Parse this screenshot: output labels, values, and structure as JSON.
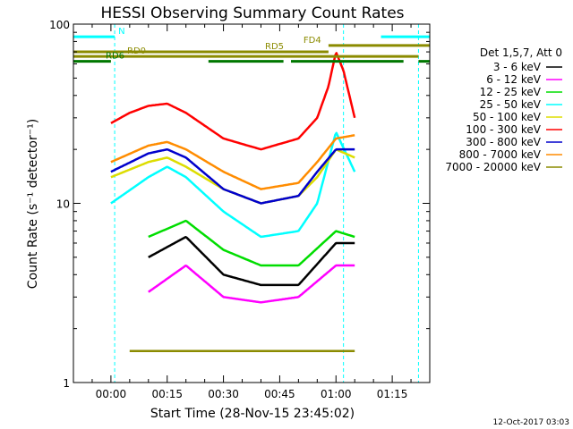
{
  "chart_data": {
    "type": "line",
    "title": "HESSI Observing Summary Count Rates",
    "xlabel": "Start Time (28-Nov-15 23:45:02)",
    "ylabel": "Count Rate (s⁻¹ detector⁻¹)",
    "y_scale": "log",
    "ylim": [
      1,
      100
    ],
    "xlim_minutes": [
      -10,
      85
    ],
    "x_ticks": [
      {
        "label": "00:00",
        "minutes": 0
      },
      {
        "label": "00:15",
        "minutes": 15
      },
      {
        "label": "00:30",
        "minutes": 30
      },
      {
        "label": "00:45",
        "minutes": 45
      },
      {
        "label": "01:00",
        "minutes": 60
      },
      {
        "label": "01:15",
        "minutes": 75
      }
    ],
    "y_ticks": [
      {
        "label": "1",
        "value": 1
      },
      {
        "label": "10",
        "value": 10
      },
      {
        "label": "100",
        "value": 100
      }
    ],
    "legend_header": "Det 1,5,7, Att 0",
    "legend_position": "right",
    "series": [
      {
        "name": "3 - 6 keV",
        "color": "#000000",
        "x": [
          10,
          20,
          30,
          40,
          50,
          60,
          65
        ],
        "y": [
          5.0,
          6.5,
          4.0,
          3.5,
          3.5,
          6.0,
          6.0
        ]
      },
      {
        "name": "6 - 12 keV",
        "color": "#ff00ff",
        "x": [
          10,
          20,
          30,
          40,
          50,
          60,
          65
        ],
        "y": [
          3.2,
          4.5,
          3.0,
          2.8,
          3.0,
          4.5,
          4.5
        ]
      },
      {
        "name": "12 - 25 keV",
        "color": "#00dd00",
        "x": [
          10,
          20,
          30,
          40,
          50,
          60,
          65
        ],
        "y": [
          6.5,
          8.0,
          5.5,
          4.5,
          4.5,
          7.0,
          6.5
        ]
      },
      {
        "name": "25 - 50 keV",
        "color": "#00ffff",
        "x": [
          0,
          10,
          15,
          20,
          30,
          40,
          50,
          55,
          60,
          65
        ],
        "y": [
          10,
          14,
          16,
          14,
          9,
          6.5,
          7,
          10,
          25,
          15
        ]
      },
      {
        "name": "50 - 100 keV",
        "color": "#dddd00",
        "x": [
          0,
          10,
          15,
          20,
          30,
          40,
          50,
          55,
          60,
          65
        ],
        "y": [
          14,
          17,
          18,
          16,
          12,
          10,
          11,
          14,
          20,
          18
        ]
      },
      {
        "name": "100 - 300 keV",
        "color": "#ff0000",
        "x": [
          0,
          5,
          10,
          15,
          20,
          30,
          40,
          50,
          55,
          58,
          60,
          62,
          65
        ],
        "y": [
          28,
          32,
          35,
          36,
          32,
          23,
          20,
          23,
          30,
          45,
          70,
          55,
          30
        ]
      },
      {
        "name": "300 - 800 keV",
        "color": "#0000cc",
        "x": [
          0,
          10,
          15,
          20,
          30,
          40,
          50,
          55,
          60,
          65
        ],
        "y": [
          15,
          19,
          20,
          18,
          12,
          10,
          11,
          15,
          20,
          20
        ]
      },
      {
        "name": "800 - 7000 keV",
        "color": "#ff8c00",
        "x": [
          0,
          10,
          15,
          20,
          30,
          40,
          50,
          55,
          60,
          65
        ],
        "y": [
          17,
          21,
          22,
          20,
          15,
          12,
          13,
          17,
          23,
          24
        ]
      },
      {
        "name": "7000 - 20000 keV",
        "color": "#8b8b00",
        "x": [
          5,
          15,
          25,
          35,
          45,
          55,
          60,
          65
        ],
        "y": [
          1.5,
          1.5,
          1.5,
          1.5,
          1.5,
          1.5,
          1.5,
          1.5
        ]
      }
    ],
    "flags": [
      {
        "label": "N",
        "color": "#00ffff",
        "y_value": 85,
        "intervals": [
          [
            -10,
            1
          ],
          [
            72,
            85
          ]
        ]
      },
      {
        "label": "FD4",
        "color": "#8b8b00",
        "y_value": 76,
        "intervals": [
          [
            58,
            85
          ]
        ]
      },
      {
        "label": "RD5",
        "color": "#8b8b00",
        "y_value": 70,
        "intervals": [
          [
            -10,
            58
          ]
        ]
      },
      {
        "label": "RD0",
        "color": "#8b8b00",
        "y_value": 66,
        "intervals": [
          [
            -10,
            82
          ]
        ]
      },
      {
        "label": "RD6",
        "color": "#007700",
        "y_value": 62,
        "intervals": [
          [
            -10,
            0
          ],
          [
            26,
            46
          ],
          [
            48,
            78
          ],
          [
            82,
            85
          ]
        ]
      }
    ],
    "vlines": [
      {
        "color": "#00ffff",
        "x": [
          -10,
          1,
          62,
          82
        ]
      }
    ],
    "footer_date": "12-Oct-2017 03:03"
  }
}
